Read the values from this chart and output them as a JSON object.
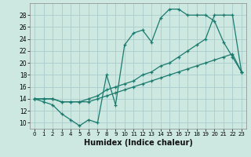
{
  "xlabel": "Humidex (Indice chaleur)",
  "ylabel": "",
  "xlim": [
    -0.5,
    23.5
  ],
  "ylim": [
    9,
    30
  ],
  "yticks": [
    10,
    12,
    14,
    16,
    18,
    20,
    22,
    24,
    26,
    28
  ],
  "xticks": [
    0,
    1,
    2,
    3,
    4,
    5,
    6,
    7,
    8,
    9,
    10,
    11,
    12,
    13,
    14,
    15,
    16,
    17,
    18,
    19,
    20,
    21,
    22,
    23
  ],
  "bg_color": "#cce8e0",
  "grid_color": "#aacccc",
  "line_color": "#1a7a6e",
  "line1_y": [
    14,
    13.5,
    13,
    11.5,
    10.5,
    9.5,
    10.5,
    10,
    18,
    13,
    23,
    25,
    25.5,
    23.5,
    27.5,
    29,
    29,
    28,
    28,
    28,
    27,
    23.5,
    21,
    18.5
  ],
  "line2_y": [
    14,
    14,
    14,
    13.5,
    13.5,
    13.5,
    14,
    14.5,
    15.5,
    16,
    16.5,
    17,
    18,
    18.5,
    19.5,
    20,
    21,
    22,
    23,
    24,
    28,
    28,
    28,
    18.5
  ],
  "line3_y": [
    14,
    14,
    14,
    13.5,
    13.5,
    13.5,
    13.5,
    14,
    14.5,
    15,
    15.5,
    16,
    16.5,
    17,
    17.5,
    18,
    18.5,
    19,
    19.5,
    20,
    20.5,
    21,
    21.5,
    18.5
  ]
}
